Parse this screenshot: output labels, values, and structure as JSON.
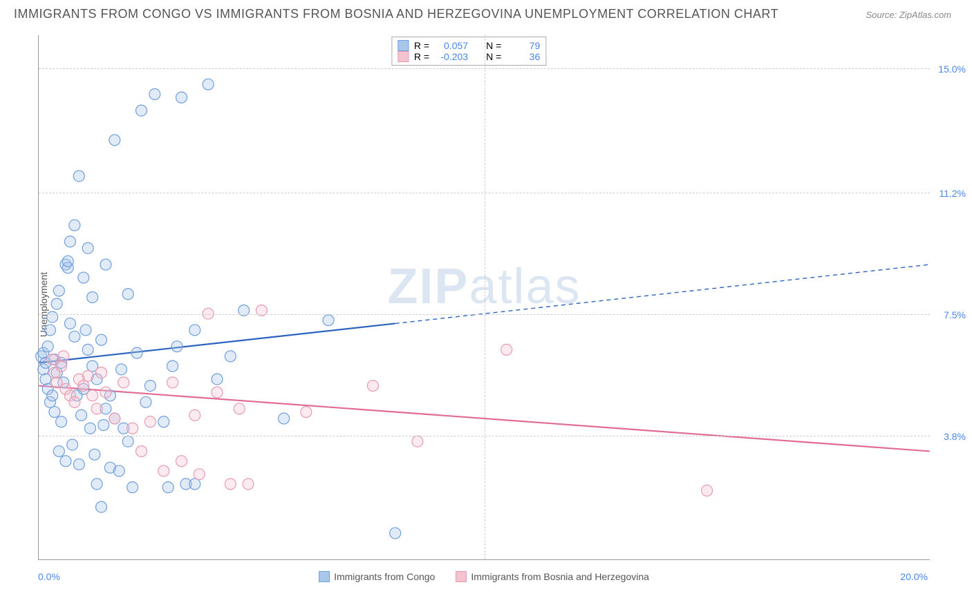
{
  "header": {
    "title": "IMMIGRANTS FROM CONGO VS IMMIGRANTS FROM BOSNIA AND HERZEGOVINA UNEMPLOYMENT CORRELATION CHART",
    "source": "Source: ZipAtlas.com"
  },
  "watermark": {
    "part1": "ZIP",
    "part2": "atlas"
  },
  "chart": {
    "type": "scatter-with-regression",
    "y_axis_label": "Unemployment",
    "xlim": [
      0.0,
      20.0
    ],
    "ylim": [
      0.0,
      16.0
    ],
    "x_ticks": [
      {
        "v": 0.0,
        "label": "0.0%"
      },
      {
        "v": 20.0,
        "label": "20.0%"
      }
    ],
    "y_ticks": [
      {
        "v": 3.8,
        "label": "3.8%"
      },
      {
        "v": 7.5,
        "label": "7.5%"
      },
      {
        "v": 11.2,
        "label": "11.2%"
      },
      {
        "v": 15.0,
        "label": "15.0%"
      }
    ],
    "vertical_gridlines": [
      10.0
    ],
    "grid_color": "#cccccc",
    "background_color": "#ffffff",
    "axis_color": "#999999",
    "tick_label_color": "#4a86e8",
    "marker_radius": 8,
    "marker_stroke_width": 1.2,
    "marker_fill_opacity": 0.35,
    "line_width_solid": 2.2,
    "line_width_dashed": 1.4,
    "dash_pattern": "6,5"
  },
  "series": [
    {
      "id": "congo",
      "label": "Immigrants from Congo",
      "color_stroke": "#6f9fdc",
      "color_fill": "#a9c7ea",
      "line_color": "#2b63c0",
      "stats": {
        "R_label": "R =",
        "R": "0.057",
        "N_label": "N =",
        "N": "79"
      },
      "regression": {
        "x1": 0.0,
        "y1": 6.0,
        "x2": 20.0,
        "y2": 9.0,
        "solid_until_x": 8.0
      },
      "points": [
        [
          0.05,
          6.2
        ],
        [
          0.1,
          5.8
        ],
        [
          0.1,
          6.3
        ],
        [
          0.15,
          5.5
        ],
        [
          0.15,
          6.0
        ],
        [
          0.2,
          6.5
        ],
        [
          0.2,
          5.2
        ],
        [
          0.25,
          4.8
        ],
        [
          0.25,
          7.0
        ],
        [
          0.3,
          7.4
        ],
        [
          0.3,
          5.0
        ],
        [
          0.35,
          4.5
        ],
        [
          0.35,
          6.1
        ],
        [
          0.4,
          7.8
        ],
        [
          0.4,
          5.7
        ],
        [
          0.45,
          3.3
        ],
        [
          0.45,
          8.2
        ],
        [
          0.5,
          6.0
        ],
        [
          0.5,
          4.2
        ],
        [
          0.55,
          5.4
        ],
        [
          0.6,
          3.0
        ],
        [
          0.6,
          9.0
        ],
        [
          0.65,
          8.9
        ],
        [
          0.65,
          9.1
        ],
        [
          0.7,
          9.7
        ],
        [
          0.7,
          7.2
        ],
        [
          0.75,
          3.5
        ],
        [
          0.8,
          10.2
        ],
        [
          0.8,
          6.8
        ],
        [
          0.85,
          5.0
        ],
        [
          0.9,
          11.7
        ],
        [
          0.9,
          2.9
        ],
        [
          0.95,
          4.4
        ],
        [
          1.0,
          5.2
        ],
        [
          1.0,
          8.6
        ],
        [
          1.05,
          7.0
        ],
        [
          1.1,
          9.5
        ],
        [
          1.1,
          6.4
        ],
        [
          1.15,
          4.0
        ],
        [
          1.2,
          5.9
        ],
        [
          1.2,
          8.0
        ],
        [
          1.25,
          3.2
        ],
        [
          1.3,
          2.3
        ],
        [
          1.3,
          5.5
        ],
        [
          1.4,
          1.6
        ],
        [
          1.4,
          6.7
        ],
        [
          1.45,
          4.1
        ],
        [
          1.5,
          9.0
        ],
        [
          1.5,
          4.6
        ],
        [
          1.6,
          2.8
        ],
        [
          1.6,
          5.0
        ],
        [
          1.7,
          12.8
        ],
        [
          1.7,
          4.3
        ],
        [
          1.8,
          2.7
        ],
        [
          1.85,
          5.8
        ],
        [
          1.9,
          4.0
        ],
        [
          2.0,
          8.1
        ],
        [
          2.0,
          3.6
        ],
        [
          2.1,
          2.2
        ],
        [
          2.2,
          6.3
        ],
        [
          2.3,
          13.7
        ],
        [
          2.4,
          4.8
        ],
        [
          2.5,
          5.3
        ],
        [
          2.6,
          14.2
        ],
        [
          2.8,
          4.2
        ],
        [
          2.9,
          2.2
        ],
        [
          3.0,
          5.9
        ],
        [
          3.1,
          6.5
        ],
        [
          3.2,
          14.1
        ],
        [
          3.3,
          2.3
        ],
        [
          3.5,
          7.0
        ],
        [
          3.5,
          2.3
        ],
        [
          3.8,
          14.5
        ],
        [
          4.0,
          5.5
        ],
        [
          4.3,
          6.2
        ],
        [
          4.6,
          7.6
        ],
        [
          5.5,
          4.3
        ],
        [
          6.5,
          7.3
        ],
        [
          8.0,
          0.8
        ]
      ]
    },
    {
      "id": "bosnia",
      "label": "Immigrants from Bosnia and Herzegovina",
      "color_stroke": "#e89ab0",
      "color_fill": "#f3c3d0",
      "line_color": "#e16b94",
      "stats": {
        "R_label": "R =",
        "R": "-0.203",
        "N_label": "N =",
        "N": "36"
      },
      "regression": {
        "x1": 0.0,
        "y1": 5.3,
        "x2": 20.0,
        "y2": 3.3,
        "solid_until_x": 20.0
      },
      "points": [
        [
          0.3,
          6.1
        ],
        [
          0.35,
          5.7
        ],
        [
          0.4,
          5.4
        ],
        [
          0.5,
          5.9
        ],
        [
          0.55,
          6.2
        ],
        [
          0.6,
          5.2
        ],
        [
          0.7,
          5.0
        ],
        [
          0.8,
          4.8
        ],
        [
          0.9,
          5.5
        ],
        [
          1.0,
          5.3
        ],
        [
          1.1,
          5.6
        ],
        [
          1.2,
          5.0
        ],
        [
          1.3,
          4.6
        ],
        [
          1.4,
          5.7
        ],
        [
          1.5,
          5.1
        ],
        [
          1.7,
          4.3
        ],
        [
          1.9,
          5.4
        ],
        [
          2.1,
          4.0
        ],
        [
          2.3,
          3.3
        ],
        [
          2.5,
          4.2
        ],
        [
          2.8,
          2.7
        ],
        [
          3.0,
          5.4
        ],
        [
          3.2,
          3.0
        ],
        [
          3.5,
          4.4
        ],
        [
          3.6,
          2.6
        ],
        [
          3.8,
          7.5
        ],
        [
          4.0,
          5.1
        ],
        [
          4.3,
          2.3
        ],
        [
          4.5,
          4.6
        ],
        [
          4.7,
          2.3
        ],
        [
          5.0,
          7.6
        ],
        [
          6.0,
          4.5
        ],
        [
          7.5,
          5.3
        ],
        [
          8.5,
          3.6
        ],
        [
          10.5,
          6.4
        ],
        [
          15.0,
          2.1
        ]
      ]
    }
  ]
}
